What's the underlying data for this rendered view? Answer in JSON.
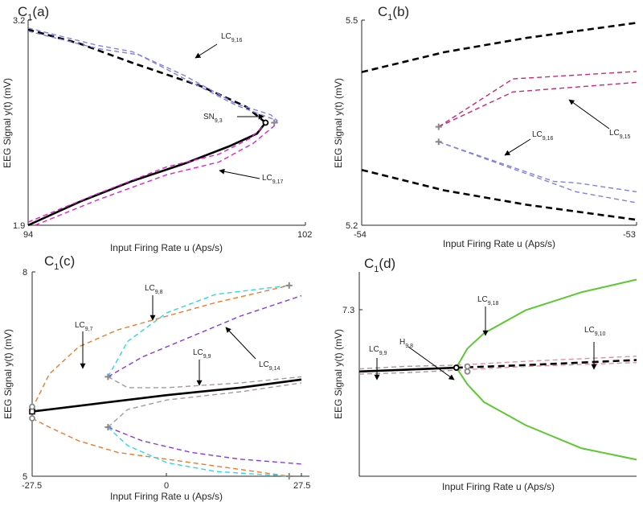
{
  "panels": [
    {
      "id": "a",
      "title_main": "C",
      "title_sub": "1",
      "title_tail": "(a)",
      "xlabel": "Input Firing Rate u (Aps/s)",
      "ylabel": "EEG Signal y(t) (mV)",
      "xticks": [
        "94",
        "102"
      ],
      "yticks": [
        "3.2",
        "1.9"
      ],
      "annotations": [
        {
          "base": "LC",
          "sub": "9,16"
        },
        {
          "base": "SN",
          "sub": "9,3"
        },
        {
          "base": "LC",
          "sub": "9,17"
        }
      ]
    },
    {
      "id": "b",
      "title_main": "C",
      "title_sub": "1",
      "title_tail": "(b)",
      "xlabel": "Input Firing Rate u (Aps/s)",
      "ylabel": "EEG Signal y(t) (mV)",
      "xticks": [
        "-54",
        "-53"
      ],
      "yticks": [
        "5.5",
        "5.2"
      ],
      "annotations": [
        {
          "base": "LC",
          "sub": "9,15"
        },
        {
          "base": "LC",
          "sub": "9,16"
        }
      ]
    },
    {
      "id": "c",
      "title_main": "C",
      "title_sub": "1",
      "title_tail": "(c)",
      "xlabel": "Input Firing Rate u (Aps/s)",
      "ylabel": "EEG Signal y(t) (mV)",
      "xticks": [
        "-27.5",
        "0",
        "27.5"
      ],
      "yticks": [
        "8",
        "5"
      ],
      "annotations": [
        {
          "base": "LC",
          "sub": "9,8"
        },
        {
          "base": "LC",
          "sub": "9,7"
        },
        {
          "base": "LC",
          "sub": "9,9"
        },
        {
          "base": "LC",
          "sub": "9,14"
        }
      ]
    },
    {
      "id": "d",
      "title_main": "C",
      "title_sub": "1",
      "title_tail": "(d)",
      "xlabel": "Input Firing Rate u (Aps/s)",
      "ylabel": "EEG Signal y(t) (mV)",
      "xticks": [],
      "yticks": [
        "7.3"
      ],
      "annotations": [
        {
          "base": "LC",
          "sub": "9,18"
        },
        {
          "base": "LC",
          "sub": "9,10"
        },
        {
          "base": "LC",
          "sub": "9,9"
        },
        {
          "base": "H",
          "sub": "9,8"
        }
      ]
    }
  ],
  "colors": {
    "equilibrium": "#000000",
    "lc_blue": "#8080e6",
    "lc_magenta": "#e01fd0",
    "lc_crimson": "#c8287a",
    "lc_orange": "#f07828",
    "lc_violet": "#8a38e0",
    "lc_cyan": "#28d8f0",
    "lc_gray": "#a89898",
    "lc_pink": "#e890a0",
    "hopf_green": "#5cc832",
    "marker_gray": "#888888"
  },
  "chart_data": [
    {
      "panel": "a",
      "type": "line",
      "xlim": [
        94,
        102
      ],
      "ylim": [
        1.9,
        3.2
      ],
      "series": [
        {
          "style": "solid",
          "color": "equilibrium",
          "points": [
            [
              94.0,
              1.9
            ],
            [
              95.5,
              2.05
            ],
            [
              97.0,
              2.18
            ],
            [
              98.5,
              2.29
            ],
            [
              99.8,
              2.4
            ],
            [
              100.6,
              2.48
            ],
            [
              100.85,
              2.55
            ]
          ]
        },
        {
          "style": "dashed",
          "color": "equilibrium",
          "points": [
            [
              100.85,
              2.55
            ],
            [
              100.3,
              2.65
            ],
            [
              99.0,
              2.78
            ],
            [
              97.0,
              2.93
            ],
            [
              95.5,
              3.05
            ],
            [
              94.0,
              3.14
            ]
          ]
        },
        {
          "style": "dashed",
          "color": "lc_blue",
          "points": [
            [
              94.0,
              3.13
            ],
            [
              96.0,
              3.02
            ],
            [
              97.2,
              2.98
            ],
            [
              98.5,
              2.83
            ],
            [
              100.0,
              2.66
            ],
            [
              101.1,
              2.57
            ],
            [
              101.2,
              2.55
            ]
          ]
        },
        {
          "style": "dashed",
          "color": "lc_blue",
          "points": [
            [
              94.0,
              3.15
            ],
            [
              96.0,
              3.04
            ],
            [
              97.0,
              3.0
            ],
            [
              98.5,
              2.85
            ],
            [
              100.0,
              2.67
            ],
            [
              101.0,
              2.6
            ],
            [
              101.2,
              2.56
            ]
          ]
        },
        {
          "style": "dashed",
          "color": "lc_magenta",
          "points": [
            [
              94.2,
              1.9
            ],
            [
              96.0,
              2.06
            ],
            [
              98.0,
              2.22
            ],
            [
              99.5,
              2.3
            ],
            [
              100.5,
              2.42
            ],
            [
              101.1,
              2.53
            ],
            [
              101.2,
              2.55
            ]
          ]
        },
        {
          "style": "dashed",
          "color": "lc_magenta",
          "points": [
            [
              94.0,
              1.92
            ],
            [
              96.0,
              2.1
            ],
            [
              98.0,
              2.27
            ],
            [
              99.5,
              2.35
            ],
            [
              100.4,
              2.45
            ],
            [
              100.9,
              2.55
            ],
            [
              101.0,
              2.56
            ]
          ]
        }
      ],
      "points": [
        {
          "marker": "circle",
          "x": 100.85,
          "y": 2.55
        },
        {
          "marker": "plus",
          "x": 101.1,
          "y": 2.55
        }
      ]
    },
    {
      "panel": "b",
      "type": "line",
      "xlim": [
        -54,
        -53
      ],
      "ylim": [
        5.2,
        5.5
      ],
      "series": [
        {
          "style": "dashed",
          "color": "equilibrium",
          "points": [
            [
              -54.0,
              5.424
            ],
            [
              -53.7,
              5.453
            ],
            [
              -53.4,
              5.474
            ],
            [
              -53.0,
              5.496
            ]
          ]
        },
        {
          "style": "dashed",
          "color": "equilibrium",
          "points": [
            [
              -54.0,
              5.281
            ],
            [
              -53.7,
              5.251
            ],
            [
              -53.4,
              5.23
            ],
            [
              -53.0,
              5.208
            ]
          ]
        },
        {
          "style": "dashed",
          "color": "lc_crimson",
          "points": [
            [
              -53.72,
              5.344
            ],
            [
              -53.45,
              5.395
            ],
            [
              -53.0,
              5.409
            ]
          ]
        },
        {
          "style": "dashed",
          "color": "lc_crimson",
          "points": [
            [
              -53.72,
              5.344
            ],
            [
              -53.45,
              5.414
            ],
            [
              -53.0,
              5.425
            ]
          ]
        },
        {
          "style": "dashed",
          "color": "lc_blue",
          "points": [
            [
              -53.72,
              5.322
            ],
            [
              -53.22,
              5.249
            ],
            [
              -53.0,
              5.233
            ]
          ]
        },
        {
          "style": "dashed",
          "color": "lc_blue",
          "points": [
            [
              -53.72,
              5.322
            ],
            [
              -53.3,
              5.264
            ],
            [
              -53.22,
              5.262
            ],
            [
              -53.0,
              5.249
            ]
          ]
        }
      ],
      "points": [
        {
          "marker": "plus",
          "x": -53.72,
          "y": 5.344
        },
        {
          "marker": "plus",
          "x": -53.72,
          "y": 5.322
        }
      ]
    },
    {
      "panel": "c",
      "type": "line",
      "xlim": [
        -27.5,
        27.5
      ],
      "ylim": [
        5,
        8
      ],
      "series": [
        {
          "style": "solid",
          "color": "equilibrium",
          "points": [
            [
              -27.5,
              5.95
            ],
            [
              -15,
              6.06
            ],
            [
              0,
              6.19
            ],
            [
              15,
              6.3
            ],
            [
              27.5,
              6.42
            ]
          ]
        },
        {
          "style": "dashed",
          "color": "lc_orange",
          "points": [
            [
              -27.5,
              5.99
            ],
            [
              -24,
              6.5
            ],
            [
              -18,
              6.9
            ],
            [
              -10,
              7.15
            ],
            [
              0,
              7.35
            ],
            [
              10,
              7.55
            ],
            [
              25,
              7.8
            ]
          ]
        },
        {
          "style": "dashed",
          "color": "lc_orange",
          "points": [
            [
              -27.5,
              5.85
            ],
            [
              -24,
              5.72
            ],
            [
              -18,
              5.52
            ],
            [
              -10,
              5.35
            ],
            [
              0,
              5.25
            ],
            [
              10,
              5.15
            ],
            [
              25,
              5.0
            ]
          ]
        },
        {
          "style": "dashed",
          "color": "lc_violet",
          "points": [
            [
              -12,
              6.46
            ],
            [
              -5,
              6.75
            ],
            [
              5,
              7.05
            ],
            [
              15,
              7.35
            ],
            [
              27.5,
              7.65
            ]
          ]
        },
        {
          "style": "dashed",
          "color": "lc_violet",
          "points": [
            [
              -12,
              5.72
            ],
            [
              -5,
              5.52
            ],
            [
              5,
              5.35
            ],
            [
              15,
              5.25
            ],
            [
              27.5,
              5.18
            ]
          ]
        },
        {
          "style": "dashed",
          "color": "lc_cyan",
          "points": [
            [
              -12,
              6.46
            ],
            [
              -8,
              6.98
            ],
            [
              0,
              7.4
            ],
            [
              10,
              7.67
            ],
            [
              25,
              7.8
            ]
          ]
        },
        {
          "style": "dashed",
          "color": "lc_cyan",
          "points": [
            [
              -12,
              5.72
            ],
            [
              -8,
              5.45
            ],
            [
              0,
              5.2
            ],
            [
              10,
              5.07
            ],
            [
              25,
              5.0
            ]
          ]
        },
        {
          "style": "dashed",
          "color": "lc_gray",
          "points": [
            [
              -12,
              6.46
            ],
            [
              -8,
              6.3
            ],
            [
              0,
              6.3
            ],
            [
              15,
              6.37
            ],
            [
              27.5,
              6.46
            ]
          ]
        },
        {
          "style": "dashed",
          "color": "lc_gray",
          "points": [
            [
              -12,
              5.72
            ],
            [
              -8,
              5.98
            ],
            [
              0,
              6.12
            ],
            [
              15,
              6.24
            ],
            [
              27.5,
              6.37
            ]
          ]
        }
      ],
      "points": [
        {
          "marker": "square",
          "x": -27.5,
          "y": 5.95
        },
        {
          "marker": "circle_gray",
          "x": -27.5,
          "y": 6.02
        },
        {
          "marker": "circle_gray",
          "x": -27.5,
          "y": 5.85
        },
        {
          "marker": "plus",
          "x": -12,
          "y": 6.46
        },
        {
          "marker": "plus",
          "x": -12,
          "y": 5.72
        },
        {
          "marker": "plus",
          "x": 25,
          "y": 7.8
        },
        {
          "marker": "plus",
          "x": 25,
          "y": 5.0
        }
      ]
    },
    {
      "panel": "d",
      "type": "line",
      "xlim": [
        0,
        1
      ],
      "ylim": [
        6.0,
        7.6
      ],
      "series": [
        {
          "style": "solid",
          "color": "equilibrium",
          "points": [
            [
              0.0,
              6.82
            ],
            [
              0.35,
              6.85
            ]
          ]
        },
        {
          "style": "dashed",
          "color": "equilibrium",
          "points": [
            [
              0.35,
              6.85
            ],
            [
              0.6,
              6.87
            ],
            [
              1.0,
              6.91
            ]
          ]
        },
        {
          "style": "dashed",
          "color": "lc_gray",
          "points": [
            [
              0.0,
              6.84
            ],
            [
              0.16,
              6.86
            ],
            [
              0.35,
              6.87
            ]
          ]
        },
        {
          "style": "dashed",
          "color": "lc_gray",
          "points": [
            [
              0.0,
              6.8
            ],
            [
              0.16,
              6.81
            ],
            [
              0.35,
              6.83
            ]
          ]
        },
        {
          "style": "dashed",
          "color": "lc_pink",
          "points": [
            [
              0.35,
              6.87
            ],
            [
              0.6,
              6.9
            ],
            [
              1.0,
              6.94
            ]
          ]
        },
        {
          "style": "dashed",
          "color": "lc_pink",
          "points": [
            [
              0.35,
              6.83
            ],
            [
              0.6,
              6.86
            ],
            [
              1.0,
              6.89
            ]
          ]
        },
        {
          "style": "solid",
          "color": "hopf_green",
          "points": [
            [
              1.0,
              7.54
            ],
            [
              0.8,
              7.44
            ],
            [
              0.6,
              7.3
            ],
            [
              0.45,
              7.12
            ],
            [
              0.39,
              7.0
            ],
            [
              0.35,
              6.85
            ],
            [
              0.39,
              6.72
            ],
            [
              0.45,
              6.58
            ],
            [
              0.6,
              6.4
            ],
            [
              0.8,
              6.22
            ],
            [
              1.0,
              6.13
            ]
          ]
        }
      ],
      "points": [
        {
          "marker": "circle",
          "x": 0.35,
          "y": 6.85
        },
        {
          "marker": "circle_gray",
          "x": 0.39,
          "y": 6.86
        },
        {
          "marker": "circle_gray",
          "x": 0.39,
          "y": 6.82
        }
      ]
    }
  ]
}
